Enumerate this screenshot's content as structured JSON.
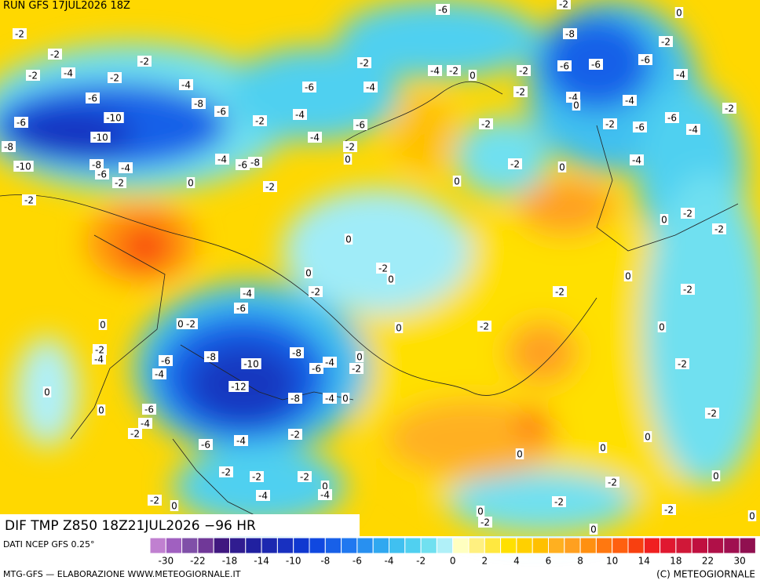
{
  "header": {
    "run": "RUN GFS 17JUL2026 18Z"
  },
  "map": {
    "labels": [
      -2,
      -2,
      -2,
      -4,
      -2,
      -2,
      -6,
      -4,
      -8,
      -6,
      -10,
      -6,
      -10,
      -8,
      -10,
      -8,
      -6,
      -4,
      -2,
      -2,
      0,
      -4,
      -6,
      -8,
      -2,
      -4,
      -6,
      -4,
      -2,
      -4,
      -6,
      -2,
      0,
      -2,
      -6,
      -4,
      -2,
      0,
      -2,
      -2,
      -2,
      -2,
      0,
      0,
      -8,
      -6,
      -6,
      -6,
      -2,
      -4,
      -4,
      0,
      -4,
      -2,
      -6,
      -6,
      -4,
      -2,
      -4,
      -2,
      -2,
      0,
      0,
      -2,
      -2,
      0,
      -2,
      -2,
      0,
      0,
      -2,
      0,
      -2,
      -2,
      0,
      -2,
      0,
      0,
      -2,
      0,
      0,
      -2,
      -4,
      -6,
      0,
      -2,
      0,
      -2,
      -4,
      -6,
      -4,
      -8,
      -10,
      -8,
      -6,
      -4,
      -2,
      0,
      -12,
      0,
      0,
      -6,
      -4,
      -2,
      -2,
      -6,
      -4,
      -2,
      -2,
      -2,
      -4,
      0,
      -4,
      -2,
      0,
      0,
      -2,
      0,
      0,
      0,
      -2,
      0,
      -8,
      -4
    ]
  },
  "footer": {
    "field": "DIF TMP Z850 18Z21JUL2026 −96 HR",
    "source": "DATI NCEP GFS 0.25°",
    "credit": "MTG-GFS — ELABORAZIONE WWW.METEOGIORNALE.IT",
    "copyright": "(C) METEOGIORNALE"
  },
  "legend": {
    "colors": [
      "#c080d0",
      "#a060c0",
      "#8050a8",
      "#703898",
      "#401880",
      "#301c90",
      "#2020a0",
      "#1c28b0",
      "#1830c0",
      "#1038d0",
      "#1048e0",
      "#1860e8",
      "#2078f0",
      "#2890f0",
      "#30a8f0",
      "#40c0f0",
      "#50d0f0",
      "#70e0f0",
      "#b0f0f8",
      "#ffffc0",
      "#fff080",
      "#ffe840",
      "#ffe000",
      "#ffd000",
      "#ffc000",
      "#ffb020",
      "#ffa020",
      "#ff9010",
      "#ff7810",
      "#ff6010",
      "#f84010",
      "#f02020",
      "#e01830",
      "#d01838",
      "#c01040",
      "#b01048",
      "#a01050",
      "#901050"
    ],
    "ticks": [
      -30,
      -22,
      -18,
      -14,
      -10,
      -8,
      -6,
      -4,
      -2,
      0,
      2,
      4,
      6,
      8,
      10,
      14,
      18,
      22,
      30
    ]
  }
}
